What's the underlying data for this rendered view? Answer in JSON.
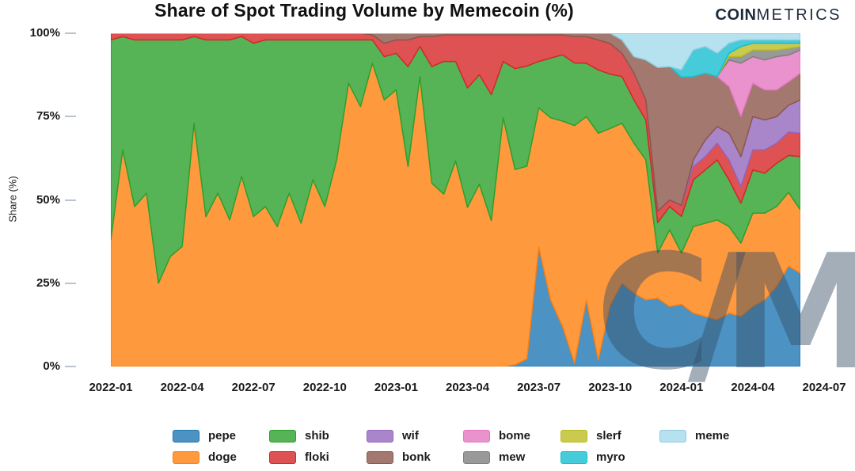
{
  "header": {
    "title": "Share of Spot Trading Volume by Memecoin (%)",
    "logo": {
      "bold": "COIN",
      "light": "METRICS"
    }
  },
  "watermark": {
    "text": "C/M"
  },
  "chart_data": {
    "type": "area",
    "stacked": true,
    "normalized_to_percent": true,
    "title": "Share of Spot Trading Volume by Memecoin (%)",
    "xlabel": "",
    "ylabel": "Share (%)",
    "ylim": [
      0,
      100
    ],
    "grid": false,
    "legend_position": "bottom",
    "x_start_label": "2022-01",
    "x_domain_months": 29,
    "x_step_months": 0.5,
    "y_ticks": {
      "values": [
        0,
        25,
        50,
        75,
        100
      ],
      "labels": [
        "0%",
        "25%",
        "50%",
        "75%",
        "100%"
      ]
    },
    "x_ticks": {
      "month_offsets": [
        0,
        3,
        6,
        9,
        12,
        15,
        18,
        21,
        24,
        27,
        30
      ],
      "labels": [
        "2022-01",
        "2022-04",
        "2022-07",
        "2022-10",
        "2023-01",
        "2023-04",
        "2023-07",
        "2023-10",
        "2024-01",
        "2024-04",
        "2024-07"
      ]
    },
    "stacking_order_note": "series listed bottom-to-top",
    "series": [
      {
        "name": "pepe",
        "fill": "#4c92c3",
        "stroke": "#1f77b4",
        "values": [
          0,
          0,
          0,
          0,
          0,
          0,
          0,
          0,
          0,
          0,
          0,
          0,
          0,
          0,
          0,
          0,
          0,
          0,
          0,
          0,
          0,
          0,
          0,
          0,
          0,
          0,
          0,
          0,
          0,
          0,
          0,
          0,
          0,
          0,
          0.5,
          2,
          36,
          20,
          12,
          1,
          20,
          2,
          18,
          25,
          22,
          20,
          18,
          18,
          17,
          16,
          15,
          14,
          16,
          15,
          18,
          20,
          24,
          30,
          28
        ]
      },
      {
        "name": "doge",
        "fill": "#ff993e",
        "stroke": "#ff7f0e",
        "values": [
          38,
          65,
          48,
          52,
          25,
          33,
          36,
          73,
          45,
          52,
          44,
          57,
          45,
          48,
          42,
          52,
          43,
          56,
          48,
          62,
          85,
          78,
          91,
          80,
          83,
          60,
          87,
          55,
          52,
          62,
          48,
          55,
          44,
          75,
          58,
          50,
          42,
          55,
          62,
          72,
          55,
          68,
          52,
          48,
          45,
          42,
          12,
          23,
          14,
          26,
          28,
          30,
          26,
          22,
          28,
          26,
          24,
          22,
          19
        ]
      },
      {
        "name": "shib",
        "fill": "#56b356",
        "stroke": "#2ca02c",
        "values": [
          60,
          34,
          50,
          46,
          73,
          65,
          62,
          26,
          53,
          46,
          54,
          42,
          52,
          50,
          56,
          46,
          55,
          42,
          50,
          36,
          13,
          20,
          7,
          13,
          11,
          30,
          9,
          35,
          40,
          30,
          36,
          33,
          38,
          17,
          30,
          26,
          14,
          18,
          20,
          19,
          16,
          19,
          16,
          14,
          13,
          12,
          8,
          7,
          10,
          14,
          16,
          18,
          14,
          12,
          13,
          12,
          13,
          11,
          16
        ]
      },
      {
        "name": "floki",
        "fill": "#de5253",
        "stroke": "#d62728",
        "values": [
          2,
          1,
          2,
          2,
          2,
          2,
          2,
          1,
          2,
          2,
          2,
          1,
          3,
          2,
          2,
          2,
          2,
          2,
          2,
          2,
          2,
          2,
          1.5,
          4,
          4,
          8,
          3,
          9,
          8,
          8,
          16,
          12,
          18,
          8,
          10,
          8,
          8,
          7,
          6,
          8,
          8,
          9,
          9,
          7,
          8,
          6,
          3,
          2,
          3,
          4,
          4,
          5,
          6,
          5,
          6,
          7,
          6,
          7,
          7
        ]
      },
      {
        "name": "wif",
        "fill": "#a985ca",
        "stroke": "#9467bd",
        "values": [
          0,
          0,
          0,
          0,
          0,
          0,
          0,
          0,
          0,
          0,
          0,
          0,
          0,
          0,
          0,
          0,
          0,
          0,
          0,
          0,
          0,
          0,
          0,
          0,
          0,
          0,
          0,
          0,
          0,
          0,
          0,
          0,
          0,
          0,
          0,
          0,
          0,
          0,
          0,
          0,
          0,
          0,
          0,
          0,
          0,
          0,
          0,
          0,
          0,
          2,
          5,
          5,
          8,
          9,
          10,
          9,
          8,
          8,
          10
        ]
      },
      {
        "name": "bonk",
        "fill": "#a3786f",
        "stroke": "#8c564b",
        "values": [
          0,
          0,
          0,
          0,
          0,
          0,
          0,
          0,
          0,
          0,
          0,
          0,
          0,
          0,
          0,
          0,
          0,
          0,
          0,
          0,
          0,
          0,
          0.5,
          3,
          2,
          2,
          1,
          1,
          0.5,
          0.5,
          0.5,
          0.5,
          0.5,
          0.5,
          0.5,
          0.5,
          0.5,
          0.5,
          0.5,
          1,
          1,
          2,
          3,
          4,
          5,
          12,
          38,
          40,
          35,
          25,
          20,
          15,
          14,
          12,
          10,
          9,
          8,
          7,
          8
        ]
      },
      {
        "name": "bome",
        "fill": "#e992ce",
        "stroke": "#e377c2",
        "values": [
          0,
          0,
          0,
          0,
          0,
          0,
          0,
          0,
          0,
          0,
          0,
          0,
          0,
          0,
          0,
          0,
          0,
          0,
          0,
          0,
          0,
          0,
          0,
          0,
          0,
          0,
          0,
          0,
          0,
          0,
          0,
          0,
          0,
          0,
          0,
          0,
          0,
          0,
          0,
          0,
          0,
          0,
          0,
          0,
          0,
          0,
          0,
          0,
          0,
          0,
          0,
          0,
          8,
          16,
          8,
          9,
          10,
          8,
          7
        ]
      },
      {
        "name": "mew",
        "fill": "#999999",
        "stroke": "#7f7f7f",
        "values": [
          0,
          0,
          0,
          0,
          0,
          0,
          0,
          0,
          0,
          0,
          0,
          0,
          0,
          0,
          0,
          0,
          0,
          0,
          0,
          0,
          0,
          0,
          0,
          0,
          0,
          0,
          0,
          0,
          0,
          0,
          0,
          0,
          0,
          0,
          0,
          0,
          0,
          0,
          0,
          0,
          0,
          0,
          0,
          0,
          0,
          0,
          0,
          0,
          0,
          0,
          0,
          0,
          1,
          2,
          2,
          3,
          2,
          2,
          1
        ]
      },
      {
        "name": "slerf",
        "fill": "#c9ca4e",
        "stroke": "#bcbd22",
        "values": [
          0,
          0,
          0,
          0,
          0,
          0,
          0,
          0,
          0,
          0,
          0,
          0,
          0,
          0,
          0,
          0,
          0,
          0,
          0,
          0,
          0,
          0,
          0,
          0,
          0,
          0,
          0,
          0,
          0,
          0,
          0,
          0,
          0,
          0,
          0,
          0,
          0,
          0,
          0,
          0,
          0,
          0,
          0,
          0,
          0,
          0,
          0,
          0,
          0,
          0,
          0,
          0,
          1,
          3,
          2,
          2,
          2,
          1.5,
          1
        ]
      },
      {
        "name": "myro",
        "fill": "#45cbd9",
        "stroke": "#17becf",
        "values": [
          0,
          0,
          0,
          0,
          0,
          0,
          0,
          0,
          0,
          0,
          0,
          0,
          0,
          0,
          0,
          0,
          0,
          0,
          0,
          0,
          0,
          0,
          0,
          0,
          0,
          0,
          0,
          0,
          0,
          0,
          0,
          0,
          0,
          0,
          0,
          0,
          0,
          0,
          0,
          0,
          0,
          0,
          0,
          0,
          0,
          0,
          0,
          0,
          2,
          8,
          8,
          7,
          3,
          2,
          1,
          1,
          1,
          1,
          1
        ]
      },
      {
        "name": "meme",
        "fill": "#b6e1ef",
        "stroke": "#93cbe0",
        "values": [
          0,
          0,
          0,
          0,
          0,
          0,
          0,
          0,
          0,
          0,
          0,
          0,
          0,
          0,
          0,
          0,
          0,
          0,
          0,
          0,
          0,
          0,
          0,
          0,
          0,
          0,
          0,
          0,
          0,
          0,
          0,
          0,
          0,
          0,
          0,
          0,
          0,
          0,
          0,
          0,
          0,
          0,
          0,
          2,
          7,
          8,
          9,
          10,
          10,
          5,
          4,
          6,
          3,
          2,
          2,
          2,
          2,
          2,
          2
        ]
      }
    ],
    "legend_columns": [
      [
        "pepe",
        "doge"
      ],
      [
        "shib",
        "floki"
      ],
      [
        "wif",
        "bonk"
      ],
      [
        "bome",
        "mew"
      ],
      [
        "slerf",
        "myro"
      ],
      [
        "meme"
      ]
    ]
  }
}
